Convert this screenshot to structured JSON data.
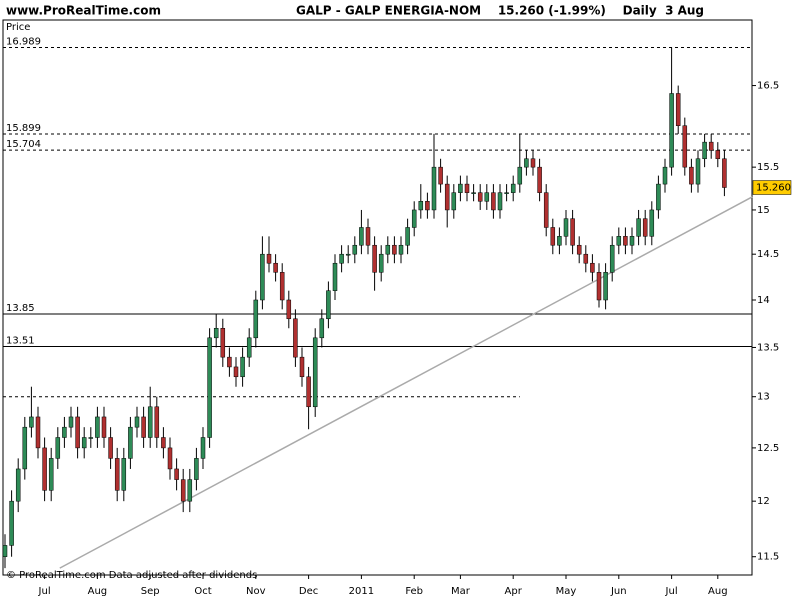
{
  "site": "www.ProRealTime.com",
  "header": "GALP - GALP ENERGIA-NOM    15.260 (-1.99%)    Daily  3 Aug",
  "footer": "© ProRealTime.com  Data adjusted after dividends",
  "chart_data": {
    "type": "candlestick",
    "y_label": "Price",
    "log_scale": true,
    "grid": false,
    "up_color": "#2e8b57",
    "down_color": "#b03030",
    "ylim": [
      11.34,
      17.35
    ],
    "yticks": [
      11.5,
      12,
      12.5,
      13,
      13.5,
      14,
      14.5,
      15,
      15.5,
      16.5
    ],
    "categories": [
      null,
      null,
      null,
      null,
      null,
      null,
      "Jul",
      null,
      null,
      null,
      null,
      null,
      null,
      null,
      "Aug",
      null,
      null,
      null,
      null,
      null,
      null,
      null,
      "Sep",
      null,
      null,
      null,
      null,
      null,
      null,
      null,
      "Oct",
      null,
      null,
      null,
      null,
      null,
      null,
      null,
      "Nov",
      null,
      null,
      null,
      null,
      null,
      null,
      null,
      "Dec",
      null,
      null,
      null,
      null,
      null,
      null,
      null,
      "2011",
      null,
      null,
      null,
      null,
      null,
      null,
      null,
      "Feb",
      null,
      null,
      null,
      null,
      null,
      null,
      "Mar",
      null,
      null,
      null,
      null,
      null,
      null,
      null,
      "Apr",
      null,
      null,
      null,
      null,
      null,
      null,
      null,
      "May",
      null,
      null,
      null,
      null,
      null,
      null,
      null,
      "Jun",
      null,
      null,
      null,
      null,
      null,
      null,
      null,
      "Jul",
      null,
      null,
      null,
      null,
      null,
      null,
      "Aug",
      null
    ],
    "open": [
      11.5,
      11.6,
      12.0,
      12.3,
      12.7,
      12.8,
      12.5,
      12.1,
      12.4,
      12.6,
      12.7,
      12.8,
      12.5,
      12.6,
      12.6,
      12.8,
      12.6,
      12.4,
      12.1,
      12.4,
      12.7,
      12.8,
      12.6,
      12.9,
      12.6,
      12.5,
      12.3,
      12.2,
      12.0,
      12.2,
      12.4,
      12.6,
      13.6,
      13.7,
      13.4,
      13.3,
      13.2,
      13.4,
      13.6,
      14.0,
      14.5,
      14.4,
      14.3,
      14.0,
      13.8,
      13.4,
      13.2,
      12.9,
      13.6,
      13.8,
      14.1,
      14.4,
      14.5,
      14.5,
      14.6,
      14.8,
      14.6,
      14.3,
      14.5,
      14.6,
      14.5,
      14.6,
      14.8,
      15.0,
      15.1,
      15.0,
      15.5,
      15.3,
      15.0,
      15.2,
      15.3,
      15.2,
      15.2,
      15.1,
      15.2,
      15.0,
      15.2,
      15.2,
      15.3,
      15.5,
      15.6,
      15.5,
      15.2,
      14.8,
      14.6,
      14.7,
      14.9,
      14.6,
      14.5,
      14.4,
      14.3,
      14.0,
      14.3,
      14.6,
      14.7,
      14.6,
      14.7,
      14.9,
      14.7,
      15.0,
      15.3,
      15.5,
      16.4,
      16.0,
      15.5,
      15.3,
      15.6,
      15.8,
      15.7,
      15.6
    ],
    "high": [
      11.7,
      12.1,
      12.4,
      12.8,
      13.1,
      12.9,
      12.6,
      12.5,
      12.7,
      12.8,
      12.9,
      12.9,
      12.7,
      12.7,
      12.9,
      12.9,
      12.7,
      12.5,
      12.5,
      12.8,
      12.9,
      12.9,
      13.1,
      13.0,
      12.7,
      12.6,
      12.4,
      12.3,
      12.3,
      12.5,
      12.7,
      13.7,
      13.85,
      13.8,
      13.5,
      13.4,
      13.5,
      13.7,
      14.1,
      14.7,
      14.7,
      14.5,
      14.4,
      14.1,
      13.9,
      13.5,
      13.3,
      13.7,
      13.9,
      14.2,
      14.5,
      14.6,
      14.6,
      14.7,
      15.0,
      14.9,
      14.7,
      14.6,
      14.7,
      14.7,
      14.7,
      14.9,
      15.1,
      15.3,
      15.2,
      15.9,
      15.6,
      15.4,
      15.3,
      15.4,
      15.4,
      15.3,
      15.3,
      15.3,
      15.3,
      15.3,
      15.3,
      15.4,
      15.9,
      15.7,
      15.7,
      15.6,
      15.3,
      14.9,
      14.8,
      15.0,
      15.0,
      14.7,
      14.6,
      14.5,
      14.4,
      14.4,
      14.7,
      14.8,
      14.8,
      14.8,
      15.0,
      15.0,
      15.1,
      15.4,
      15.6,
      16.989,
      16.5,
      16.1,
      15.6,
      15.7,
      15.9,
      15.9,
      15.8,
      15.7
    ],
    "low": [
      11.4,
      11.5,
      11.9,
      12.2,
      12.6,
      12.4,
      12.0,
      12.0,
      12.3,
      12.5,
      12.6,
      12.4,
      12.4,
      12.5,
      12.5,
      12.5,
      12.3,
      12.0,
      12.0,
      12.3,
      12.6,
      12.5,
      12.5,
      12.5,
      12.4,
      12.2,
      12.1,
      11.9,
      11.9,
      12.1,
      12.3,
      12.5,
      13.5,
      13.3,
      13.2,
      13.1,
      13.1,
      13.3,
      13.5,
      13.9,
      14.3,
      14.2,
      13.9,
      13.7,
      13.3,
      13.1,
      12.68,
      12.8,
      13.5,
      13.7,
      14.0,
      14.3,
      14.4,
      14.4,
      14.5,
      14.5,
      14.1,
      14.2,
      14.4,
      14.4,
      14.4,
      14.5,
      14.7,
      14.9,
      14.9,
      14.9,
      15.2,
      14.8,
      14.9,
      15.1,
      15.1,
      15.1,
      15.0,
      15.0,
      14.9,
      14.9,
      15.1,
      15.1,
      15.2,
      15.4,
      15.4,
      15.1,
      14.7,
      14.5,
      14.5,
      14.6,
      14.5,
      14.4,
      14.3,
      14.2,
      13.92,
      13.9,
      14.2,
      14.5,
      14.5,
      14.5,
      14.6,
      14.6,
      14.6,
      14.9,
      15.2,
      15.4,
      15.9,
      15.4,
      15.2,
      15.2,
      15.5,
      15.6,
      15.5,
      15.16
    ],
    "close": [
      11.6,
      12.0,
      12.3,
      12.7,
      12.8,
      12.5,
      12.1,
      12.4,
      12.6,
      12.7,
      12.8,
      12.5,
      12.6,
      12.6,
      12.8,
      12.6,
      12.4,
      12.1,
      12.4,
      12.7,
      12.8,
      12.6,
      12.9,
      12.6,
      12.5,
      12.3,
      12.2,
      12.0,
      12.2,
      12.4,
      12.6,
      13.6,
      13.7,
      13.4,
      13.3,
      13.2,
      13.4,
      13.6,
      14.0,
      14.5,
      14.4,
      14.3,
      14.0,
      13.8,
      13.4,
      13.2,
      12.9,
      13.6,
      13.8,
      14.1,
      14.4,
      14.5,
      14.5,
      14.6,
      14.8,
      14.6,
      14.3,
      14.5,
      14.6,
      14.5,
      14.6,
      14.8,
      15.0,
      15.1,
      15.0,
      15.5,
      15.3,
      15.0,
      15.2,
      15.3,
      15.2,
      15.2,
      15.1,
      15.2,
      15.0,
      15.2,
      15.2,
      15.3,
      15.5,
      15.6,
      15.5,
      15.2,
      14.8,
      14.6,
      14.7,
      14.9,
      14.6,
      14.5,
      14.4,
      14.3,
      14.0,
      14.3,
      14.6,
      14.7,
      14.6,
      14.7,
      14.9,
      14.7,
      15.0,
      15.3,
      15.5,
      16.4,
      16.0,
      15.5,
      15.3,
      15.6,
      15.8,
      15.7,
      15.6,
      15.26
    ],
    "levels": [
      {
        "value": 16.989,
        "style": "dashed"
      },
      {
        "value": 15.899,
        "style": "dashed"
      },
      {
        "value": 15.704,
        "style": "dashed"
      },
      {
        "value": 13.85,
        "style": "solid"
      },
      {
        "value": 13.51,
        "style": "solid"
      }
    ],
    "partial_line": {
      "value": 13.0,
      "end_index": 78,
      "style": "dashed"
    },
    "trendline": {
      "from": [
        8.3,
        11.4
      ],
      "to": [
        113.2,
        15.15
      ],
      "color": "#aaaaaa"
    },
    "last_price": {
      "value": 15.26,
      "label": "15.260",
      "color": "#ffcc00"
    }
  }
}
